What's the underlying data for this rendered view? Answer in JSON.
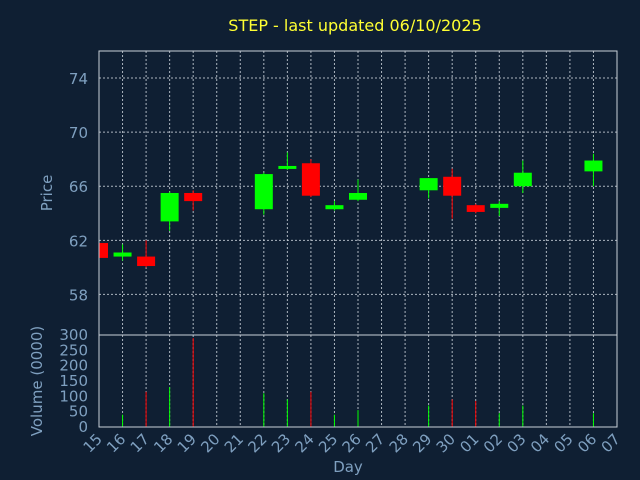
{
  "chart_data": {
    "type": "candlestick",
    "title": "STEP - last updated 06/10/2025",
    "xlabel": "Day",
    "price_ylabel": "Price",
    "volume_ylabel": "Volume (0000)",
    "x_ticks": [
      "15",
      "16",
      "17",
      "18",
      "19",
      "20",
      "21",
      "22",
      "23",
      "24",
      "25",
      "26",
      "27",
      "28",
      "29",
      "30",
      "01",
      "02",
      "03",
      "04",
      "05",
      "06",
      "07"
    ],
    "price_ylim": [
      55,
      76
    ],
    "price_ticks": [
      58,
      62,
      66,
      70,
      74
    ],
    "volume_ylim": [
      0,
      300
    ],
    "volume_ticks": [
      0,
      50,
      100,
      150,
      200,
      250,
      300
    ],
    "up_color": "#00ff00",
    "down_color": "#ff0000",
    "candles": [
      {
        "day": "15",
        "open": 61.8,
        "high": 61.8,
        "low": 60.7,
        "close": 60.7,
        "volume": 0
      },
      {
        "day": "16",
        "open": 60.8,
        "high": 61.7,
        "low": 60.5,
        "close": 61.1,
        "volume": 40
      },
      {
        "day": "17",
        "open": 60.8,
        "high": 62.0,
        "low": 60.0,
        "close": 60.1,
        "volume": 115
      },
      {
        "day": "18",
        "open": 63.4,
        "high": 65.6,
        "low": 62.7,
        "close": 65.5,
        "volume": 130
      },
      {
        "day": "19",
        "open": 65.5,
        "high": 65.7,
        "low": 64.2,
        "close": 64.9,
        "volume": 290
      },
      {
        "day": "22",
        "open": 64.3,
        "high": 67.0,
        "low": 63.9,
        "close": 66.9,
        "volume": 110
      },
      {
        "day": "23",
        "open": 67.3,
        "high": 68.5,
        "low": 67.2,
        "close": 67.5,
        "volume": 90
      },
      {
        "day": "24",
        "open": 67.7,
        "high": 68.0,
        "low": 65.2,
        "close": 65.3,
        "volume": 115
      },
      {
        "day": "25",
        "open": 64.3,
        "high": 64.9,
        "low": 64.2,
        "close": 64.6,
        "volume": 40
      },
      {
        "day": "26",
        "open": 65.0,
        "high": 66.5,
        "low": 64.9,
        "close": 65.5,
        "volume": 55
      },
      {
        "day": "29",
        "open": 65.7,
        "high": 66.6,
        "low": 65.1,
        "close": 66.6,
        "volume": 70
      },
      {
        "day": "30",
        "open": 66.7,
        "high": 67.3,
        "low": 63.6,
        "close": 65.3,
        "volume": 90
      },
      {
        "day": "01",
        "open": 64.6,
        "high": 64.7,
        "low": 64.0,
        "close": 64.1,
        "volume": 85
      },
      {
        "day": "02",
        "open": 64.4,
        "high": 64.9,
        "low": 63.8,
        "close": 64.7,
        "volume": 45
      },
      {
        "day": "03",
        "open": 66.0,
        "high": 67.9,
        "low": 65.5,
        "close": 67.0,
        "volume": 70
      },
      {
        "day": "06",
        "open": 67.1,
        "high": 68.4,
        "low": 66.0,
        "close": 67.9,
        "volume": 45
      }
    ]
  }
}
